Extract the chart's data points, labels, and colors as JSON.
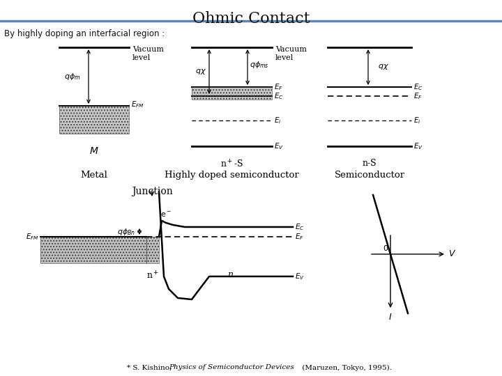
{
  "title": "Ohmic Contact",
  "subtitle": "By highly doping an interfacial region :",
  "bg_color": "#ffffff",
  "header_line_color": "#5588bb",
  "footnote_1": "* S. Kishino, ",
  "footnote_2": "Physics of Semiconductor Devices",
  "footnote_3": " (Maruzen, Tokyo, 1995)."
}
